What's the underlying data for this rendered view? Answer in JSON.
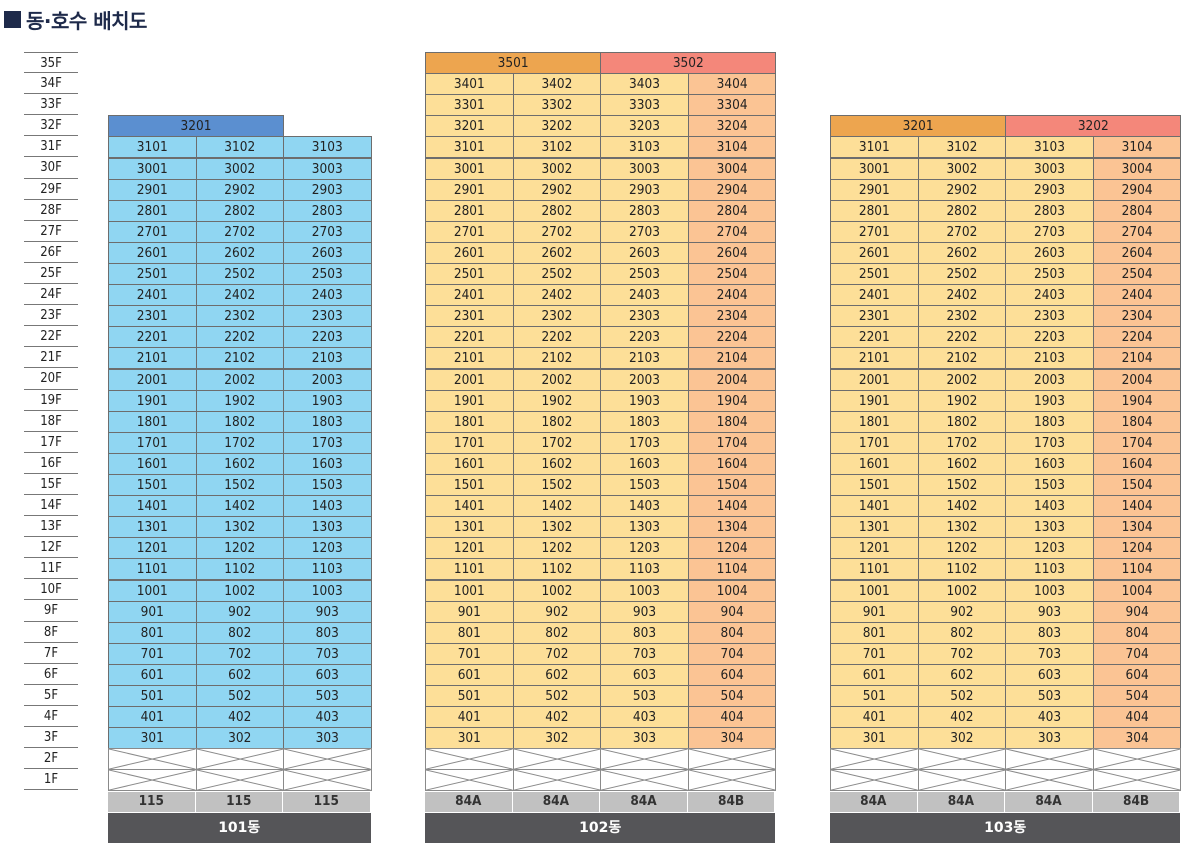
{
  "title": "동·호수 배치도",
  "floors": [
    "35F",
    "34F",
    "33F",
    "32F",
    "31F",
    "30F",
    "29F",
    "28F",
    "27F",
    "26F",
    "25F",
    "24F",
    "23F",
    "22F",
    "21F",
    "20F",
    "19F",
    "18F",
    "17F",
    "16F",
    "15F",
    "14F",
    "13F",
    "12F",
    "11F",
    "10F",
    "9F",
    "8F",
    "7F",
    "6F",
    "5F",
    "4F",
    "3F",
    "2F",
    "1F"
  ],
  "colors": {
    "blue_cell": "#90d6f2",
    "blue_top": "#5b8fd0",
    "yellow_cell": "#fddf98",
    "orange_cell": "#fbc494",
    "orange_top": "#eda54f",
    "red_top": "#f4877a",
    "type_bg": "#c1c1c1",
    "name_bg": "#555558",
    "title": "#1e2a4a"
  },
  "buildings": [
    {
      "name": "101동",
      "max_floor": 31,
      "columns": 3,
      "column_types": [
        "115",
        "115",
        "115"
      ],
      "column_colors": [
        "blue_cell",
        "blue_cell",
        "blue_cell"
      ],
      "top_units": [
        {
          "floor": 32,
          "span": 2,
          "label": "3201",
          "color": "blue_top"
        }
      ]
    },
    {
      "name": "102동",
      "max_floor": 34,
      "columns": 4,
      "column_types": [
        "84A",
        "84A",
        "84A",
        "84B"
      ],
      "column_colors": [
        "yellow_cell",
        "yellow_cell",
        "yellow_cell",
        "orange_cell"
      ],
      "top_units": [
        {
          "floor": 35,
          "span": 2,
          "label": "3501",
          "color": "orange_top"
        },
        {
          "floor": 35,
          "span": 2,
          "label": "3502",
          "color": "red_top"
        }
      ]
    },
    {
      "name": "103동",
      "max_floor": 31,
      "columns": 4,
      "column_types": [
        "84A",
        "84A",
        "84A",
        "84B"
      ],
      "column_colors": [
        "yellow_cell",
        "yellow_cell",
        "yellow_cell",
        "orange_cell"
      ],
      "top_units": [
        {
          "floor": 32,
          "span": 2,
          "label": "3201",
          "color": "orange_top"
        },
        {
          "floor": 32,
          "span": 2,
          "label": "3202",
          "color": "red_top"
        }
      ]
    }
  ]
}
